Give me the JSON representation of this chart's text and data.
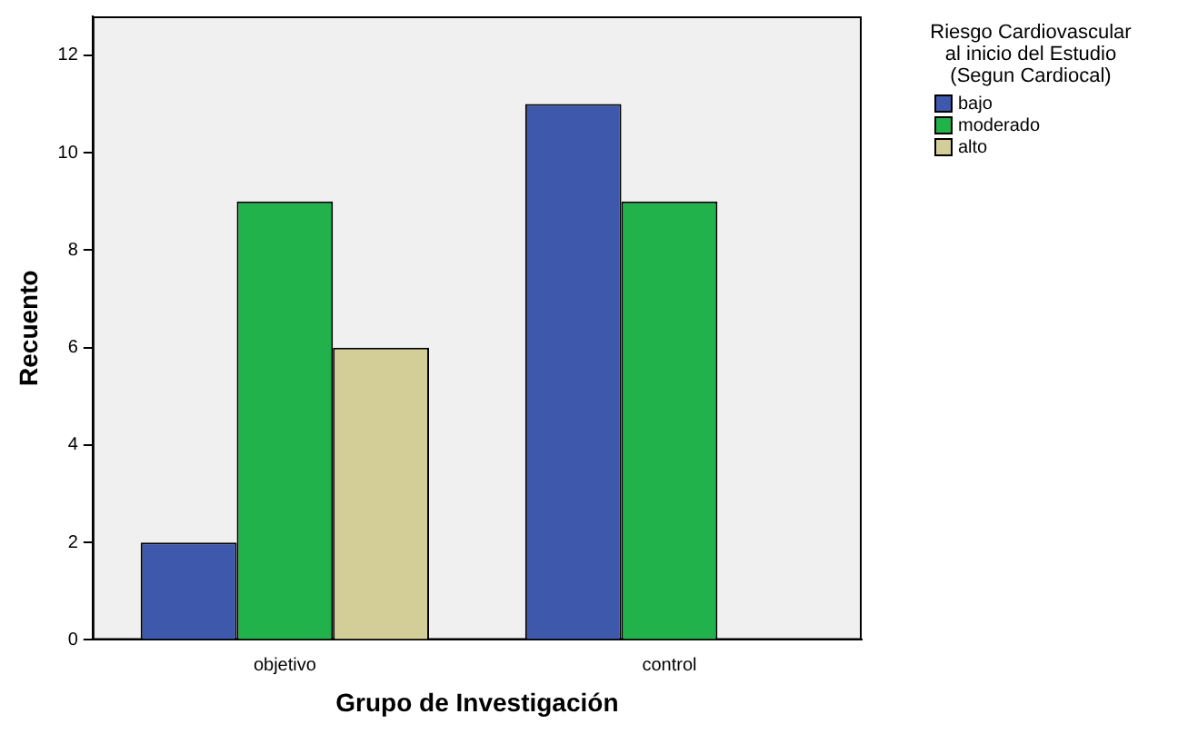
{
  "chart_data": {
    "type": "bar",
    "xlabel": "Grupo de Investigación",
    "ylabel": "Recuento",
    "legend_title": "Riesgo Cardiovascular\nal inicio del Estudio\n(Segun Cardiocal)",
    "categories": [
      "objetivo",
      "control"
    ],
    "series": [
      {
        "name": "bajo",
        "color": "#3e58ac",
        "values": [
          2,
          11
        ]
      },
      {
        "name": "moderado",
        "color": "#21b24b",
        "values": [
          9,
          9
        ]
      },
      {
        "name": "alto",
        "color": "#d3ce98",
        "values": [
          6,
          null
        ]
      }
    ],
    "ylim": [
      0,
      12.8
    ],
    "yticks": [
      0,
      2,
      4,
      6,
      8,
      10,
      12
    ],
    "grid": false,
    "legend": "top right"
  }
}
